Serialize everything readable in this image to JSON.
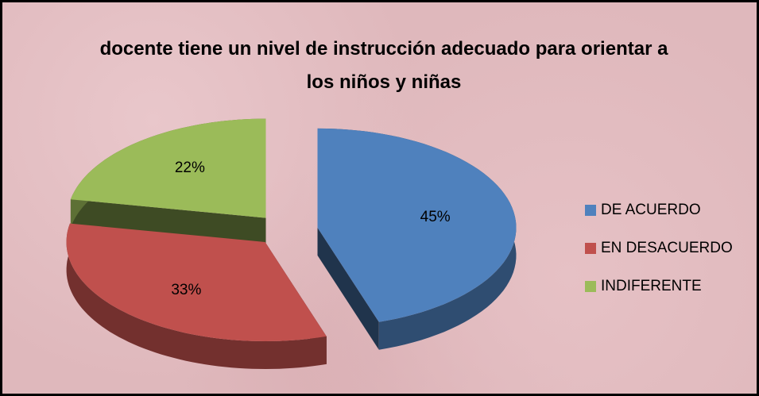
{
  "chart_data": {
    "type": "pie3d",
    "title": "docente tiene un nivel de instrucción adecuado para orientar a los niños y niñas",
    "categories": [
      "DE ACUERDO",
      "EN DESACUERDO",
      "INDIFERENTE"
    ],
    "values": [
      45,
      33,
      22
    ],
    "value_labels": [
      "45%",
      "33%",
      "22%"
    ],
    "colors": [
      "#4f81bd",
      "#c0504d",
      "#9bbb59"
    ],
    "legend": "right"
  }
}
